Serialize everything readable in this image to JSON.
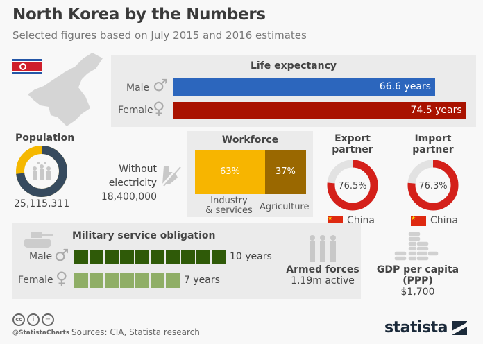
{
  "title": "North Korea by the Numbers",
  "subtitle": "Selected figures based on July 2015 and 2016 estimates",
  "colors": {
    "male_bar": "#2c66bd",
    "female_bar": "#a91200",
    "industry": "#f7b500",
    "agriculture": "#9a6800",
    "pop_dark": "#364a5e",
    "pop_light": "#f5b800",
    "partner": "#d4201a",
    "mil_male": "#2f5a08",
    "mil_female": "#8fae66"
  },
  "chart_data": [
    {
      "type": "bar",
      "title": "Life expectancy",
      "categories": [
        "Male",
        "Female"
      ],
      "values": [
        66.6,
        74.5
      ],
      "labels": [
        "66.6 years",
        "74.5 years"
      ]
    },
    {
      "type": "pie",
      "title": "Population",
      "total_label": "25,115,311",
      "total": 25115311,
      "segment_label": "Without electricity",
      "segment_value": 18400000,
      "segment_value_label": "18,400,000"
    },
    {
      "type": "bar",
      "title": "Workforce",
      "categories": [
        "Industry & services",
        "Agriculture"
      ],
      "values": [
        63,
        37
      ],
      "labels": [
        "63%",
        "37%"
      ]
    },
    {
      "type": "pie",
      "title": "Export partner",
      "partner": "China",
      "value": 76.5,
      "label": "76.5%"
    },
    {
      "type": "pie",
      "title": "Import partner",
      "partner": "China",
      "value": 76.3,
      "label": "76.3%"
    },
    {
      "type": "bar",
      "title": "Military service obligation",
      "categories": [
        "Male",
        "Female"
      ],
      "values": [
        10,
        7
      ],
      "labels": [
        "10 years",
        "7 years"
      ]
    }
  ],
  "life": {
    "male": "Male",
    "female": "Female"
  },
  "pop": {
    "title": "Population",
    "total": "25,115,311",
    "elec_label": "Without electricity",
    "elec_value": "18,400,000"
  },
  "work": {
    "title": "Workforce",
    "ind_val": "63%",
    "agr_val": "37%",
    "ind_l1": "Industry",
    "ind_l2": "& services",
    "agr": "Agriculture"
  },
  "export": {
    "title": "Export partner",
    "val": "76.5%",
    "country": "China"
  },
  "import": {
    "title": "Import partner",
    "val": "76.3%",
    "country": "China"
  },
  "mil": {
    "title": "Military service obligation",
    "male": "Male",
    "female": "Female",
    "male_val": "10 years",
    "female_val": "7 years"
  },
  "armed": {
    "title": "Armed forces",
    "val": "1.19m active"
  },
  "gdp": {
    "title": "GDP per capita (PPP)",
    "val": "$1,700"
  },
  "footer": {
    "handle": "@StatistaCharts",
    "sources": "Sources: CIA, Statista research",
    "logo": "statista"
  }
}
